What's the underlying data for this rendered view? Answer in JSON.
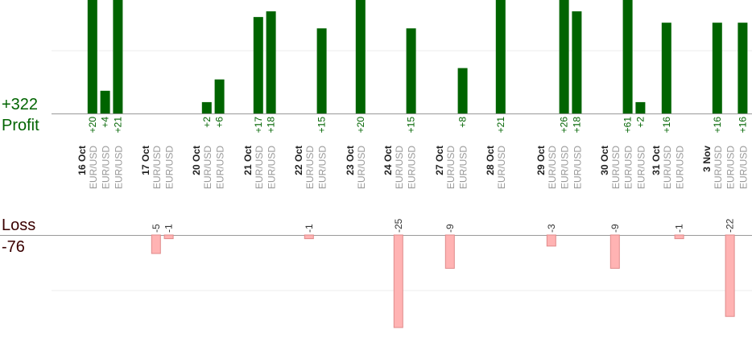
{
  "summary": {
    "profit_total": "+322",
    "profit_label": "Profit",
    "loss_label": "Loss",
    "loss_total": "-76"
  },
  "colors": {
    "profit_bar": "#006400",
    "profit_text": "#006400",
    "loss_bar": "#ffb3b3",
    "loss_bar_border": "#e08a8a",
    "loss_text": "#333333",
    "axis_line": "#999999",
    "grid_line": "#eeeeee",
    "symbol_text": "#999999",
    "date_text": "#222222"
  },
  "chart_data": {
    "type": "bar",
    "profit_ylim": [
      0,
      20
    ],
    "loss_ylim": [
      0,
      25
    ],
    "groups": [
      {
        "date": "16 Oct",
        "trades": [
          {
            "symbol": "EUR/USD",
            "value": 20,
            "label": "+20"
          },
          {
            "symbol": "EUR/USD",
            "value": 4,
            "label": "+4"
          },
          {
            "symbol": "EUR/USD",
            "value": 21,
            "label": "+21"
          }
        ]
      },
      {
        "date": "17 Oct",
        "trades": [
          {
            "symbol": "EUR/USD",
            "value": -5,
            "label": "-5"
          },
          {
            "symbol": "EUR/USD",
            "value": -1,
            "label": "-1"
          }
        ]
      },
      {
        "date": "20 Oct",
        "trades": [
          {
            "symbol": "EUR/USD",
            "value": 2,
            "label": "+2"
          },
          {
            "symbol": "EUR/USD",
            "value": 6,
            "label": "+6"
          }
        ]
      },
      {
        "date": "21 Oct",
        "trades": [
          {
            "symbol": "EUR/USD",
            "value": 17,
            "label": "+17"
          },
          {
            "symbol": "EUR/USD",
            "value": 18,
            "label": "+18"
          }
        ]
      },
      {
        "date": "22 Oct",
        "trades": [
          {
            "symbol": "EUR/USD",
            "value": -1,
            "label": "-1"
          },
          {
            "symbol": "EUR/USD",
            "value": 15,
            "label": "+15"
          }
        ]
      },
      {
        "date": "23 Oct",
        "trades": [
          {
            "symbol": "EUR/USD",
            "value": 20,
            "label": "+20"
          }
        ]
      },
      {
        "date": "24 Oct",
        "trades": [
          {
            "symbol": "EUR/USD",
            "value": -25,
            "label": "-25"
          },
          {
            "symbol": "EUR/USD",
            "value": 15,
            "label": "+15"
          }
        ]
      },
      {
        "date": "27 Oct",
        "trades": [
          {
            "symbol": "EUR/USD",
            "value": -9,
            "label": "-9"
          },
          {
            "symbol": "EUR/USD",
            "value": 8,
            "label": "+8"
          }
        ]
      },
      {
        "date": "28 Oct",
        "trades": [
          {
            "symbol": "EUR/USD",
            "value": 21,
            "label": "+21"
          }
        ]
      },
      {
        "date": "29 Oct",
        "trades": [
          {
            "symbol": "EUR/USD",
            "value": -3,
            "label": "-3"
          },
          {
            "symbol": "EUR/USD",
            "value": 26,
            "label": "+26"
          },
          {
            "symbol": "EUR/USD",
            "value": 18,
            "label": "+18"
          }
        ]
      },
      {
        "date": "30 Oct",
        "trades": [
          {
            "symbol": "EUR/USD",
            "value": -9,
            "label": "-9"
          },
          {
            "symbol": "EUR/USD",
            "value": 61,
            "label": "+61"
          },
          {
            "symbol": "EUR/USD",
            "value": 2,
            "label": "+2"
          }
        ]
      },
      {
        "date": "31 Oct",
        "trades": [
          {
            "symbol": "EUR/USD",
            "value": 16,
            "label": "+16"
          },
          {
            "symbol": "EUR/USD",
            "value": -1,
            "label": "-1"
          }
        ]
      },
      {
        "date": "3 Nov",
        "trades": [
          {
            "symbol": "EUR/USD",
            "value": 16,
            "label": "+16"
          },
          {
            "symbol": "EUR/USD",
            "value": -22,
            "label": "-22"
          },
          {
            "symbol": "EUR/USD",
            "value": 16,
            "label": "+16"
          }
        ]
      }
    ]
  }
}
